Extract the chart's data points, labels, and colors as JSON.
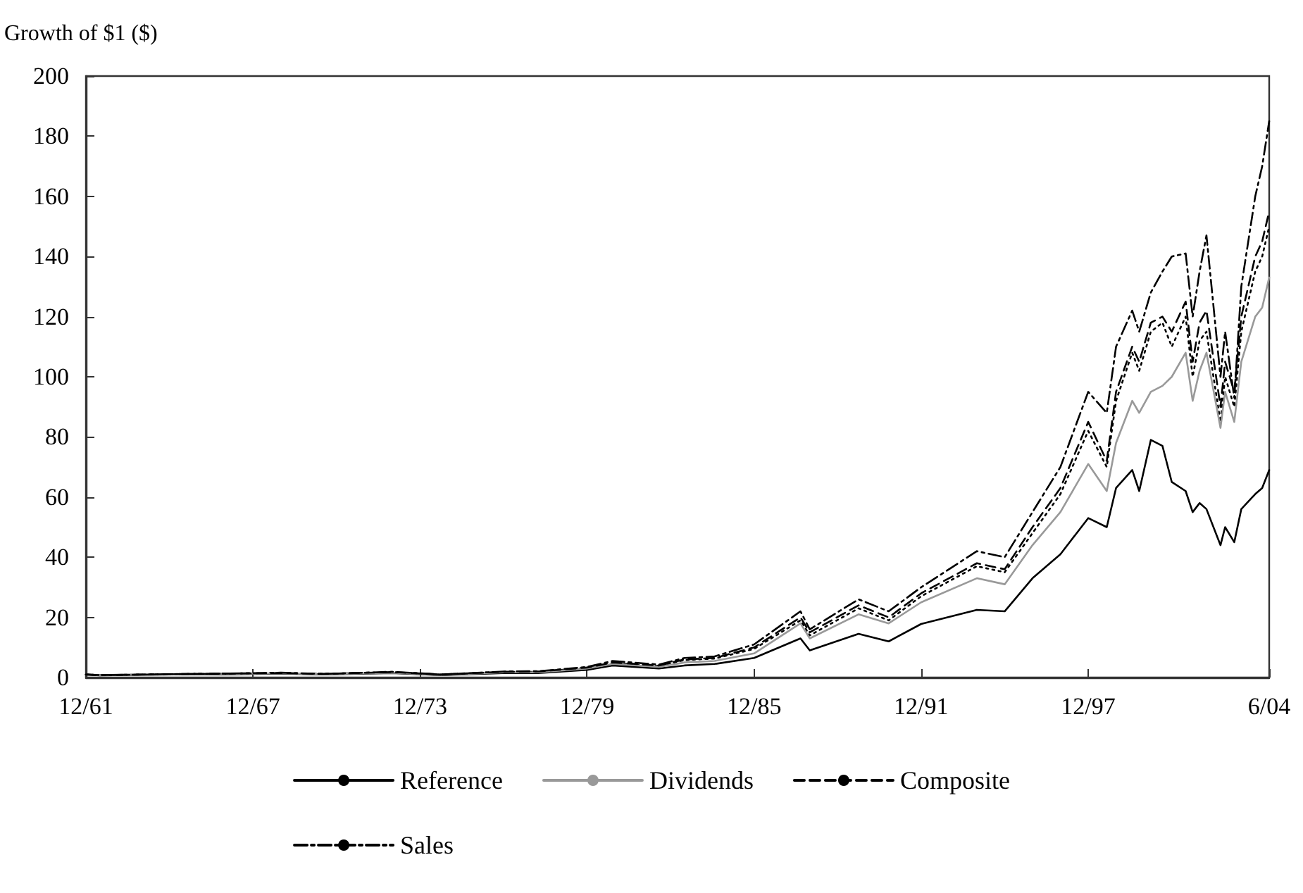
{
  "chart_data": {
    "type": "line",
    "ylabel": "Growth of $1 ($)",
    "x": [
      "1961-12",
      "1962-06",
      "1964-12",
      "1966-10",
      "1968-12",
      "1970-06",
      "1972-12",
      "1974-09",
      "1976-12",
      "1978-03",
      "1979-12",
      "1980-11",
      "1982-07",
      "1983-06",
      "1984-07",
      "1985-12",
      "1987-08",
      "1987-12",
      "1989-09",
      "1990-10",
      "1991-12",
      "1993-12",
      "1994-12",
      "1995-12",
      "1996-12",
      "1997-12",
      "1998-08",
      "1998-12",
      "1999-07",
      "1999-10",
      "2000-03",
      "2000-08",
      "2000-12",
      "2001-06",
      "2001-09",
      "2001-12",
      "2002-03",
      "2002-09",
      "2002-11",
      "2003-03",
      "2003-06",
      "2003-12",
      "2004-03",
      "2004-06"
    ],
    "series": [
      {
        "name": "Reference",
        "color": "#000000",
        "line_style": "solid",
        "values": [
          1,
          0.7,
          1,
          1,
          1.3,
          1,
          1.5,
          0.8,
          1.5,
          1.5,
          2.5,
          4,
          3,
          4,
          4.5,
          6.5,
          13,
          9,
          14.5,
          12,
          17.8,
          22.5,
          22,
          33,
          41,
          53,
          50,
          63,
          69,
          62,
          79,
          77,
          65,
          62,
          55,
          58,
          56,
          44,
          50,
          45,
          56,
          61,
          63,
          69
        ]
      },
      {
        "color": "#000000",
        "line_style": "dotted",
        "values": [
          1,
          0.8,
          1.1,
          1.2,
          1.5,
          1.2,
          1.7,
          1,
          1.8,
          1.9,
          3.2,
          4.8,
          3.8,
          5.8,
          6.3,
          9.5,
          19,
          14,
          23,
          19,
          27,
          37,
          35,
          48,
          61,
          82,
          70,
          92,
          108,
          102,
          115,
          118,
          110,
          120,
          100,
          112,
          115,
          85,
          100,
          90,
          115,
          135,
          140,
          150
        ]
      },
      {
        "name": "Dividends",
        "color": "#999999",
        "line_style": "solid",
        "values": [
          1,
          0.8,
          1,
          1.2,
          1.4,
          1.1,
          1.6,
          0.9,
          1.7,
          1.7,
          3,
          4.5,
          3.5,
          5,
          5.5,
          8,
          18,
          13,
          21,
          18,
          25,
          33,
          31,
          44,
          55,
          71,
          62,
          78,
          92,
          88,
          95,
          97,
          100,
          108,
          92,
          102,
          108,
          83,
          95,
          85,
          105,
          120,
          123,
          133
        ]
      },
      {
        "name": "Composite",
        "color": "#000000",
        "line_style": "dashed",
        "values": [
          1,
          0.8,
          1.1,
          1.3,
          1.5,
          1.2,
          1.8,
          1,
          1.9,
          2,
          3.3,
          5,
          4,
          6,
          6.5,
          10,
          20,
          15,
          24,
          20,
          28,
          38,
          36,
          50,
          63,
          85,
          72,
          95,
          110,
          105,
          118,
          120,
          115,
          125,
          105,
          118,
          122,
          90,
          105,
          95,
          120,
          140,
          145,
          155
        ]
      },
      {
        "name": "Sales",
        "color": "#000000",
        "line_style": "dashdot",
        "values": [
          1,
          0.8,
          1.1,
          1.3,
          1.6,
          1.2,
          1.9,
          1,
          2,
          2.1,
          3.5,
          5.5,
          4.3,
          6.5,
          7,
          11,
          22,
          16,
          26,
          22,
          30,
          42,
          40,
          55,
          70,
          95,
          88,
          110,
          122,
          115,
          128,
          135,
          140,
          141,
          120,
          135,
          147,
          100,
          115,
          93,
          130,
          160,
          170,
          185
        ]
      }
    ],
    "xlim": [
      "1961-12",
      "2004-06"
    ],
    "xticks": [
      {
        "value": "1961-12",
        "label": "12/61"
      },
      {
        "value": "1967-12",
        "label": "12/67"
      },
      {
        "value": "1973-12",
        "label": "12/73"
      },
      {
        "value": "1979-12",
        "label": "12/79"
      },
      {
        "value": "1985-12",
        "label": "12/85"
      },
      {
        "value": "1991-12",
        "label": "12/91"
      },
      {
        "value": "1997-12",
        "label": "12/97"
      },
      {
        "value": "2004-06",
        "label": "6/04"
      }
    ],
    "ylim": [
      0,
      200
    ],
    "yticks": [
      0,
      20,
      40,
      60,
      80,
      100,
      120,
      140,
      160,
      180,
      200
    ],
    "grid": false,
    "legend": "bottom",
    "marker": "none"
  }
}
